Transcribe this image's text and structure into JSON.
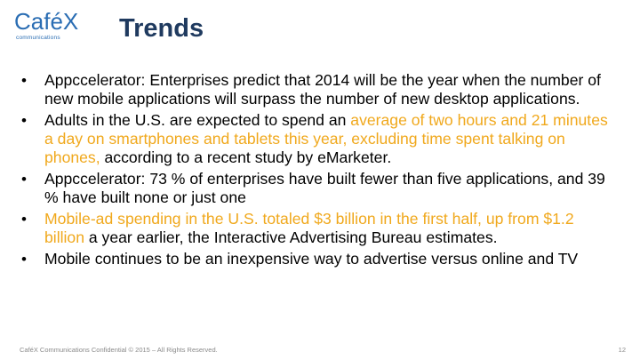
{
  "logo": {
    "word": "CaféX",
    "sub": "communications"
  },
  "title": "Trends",
  "bullets": [
    {
      "parts": [
        {
          "text": "Appccelerator: Enterprises predict that 2014 will be the year when the number of new mobile applications will surpass the number of new desktop applications.",
          "hl": false
        }
      ]
    },
    {
      "parts": [
        {
          "text": "Adults in the U.S. are expected to spend an ",
          "hl": false
        },
        {
          "text": "average of two hours and 21 minutes a day on smartphones and tablets this year, excluding time spent talking on phones,",
          "hl": true
        },
        {
          "text": " according to a recent study by eMarketer.",
          "hl": false
        }
      ]
    },
    {
      "parts": [
        {
          "text": "Appccelerator:  73 % of enterprises have built fewer than five applications, and 39 % have built none or just one",
          "hl": false
        }
      ]
    },
    {
      "parts": [
        {
          "text": " Mobile-ad spending in the U.S. totaled $3 billion in the first half, up from $1.2 billion",
          "hl": true
        },
        {
          "text": " a year earlier, the Interactive Advertising Bureau estimates.",
          "hl": false
        }
      ]
    },
    {
      "parts": [
        {
          "text": "Mobile continues to be an inexpensive way to advertise versus online and TV",
          "hl": false
        }
      ]
    }
  ],
  "footer": "CaféX Communications Confidential © 2015 – All Rights Reserved.",
  "page_number": "12",
  "colors": {
    "title": "#1f3a5f",
    "logo": "#2a6db3",
    "highlight": "#f0a81c",
    "footer": "#8a8a8a"
  }
}
